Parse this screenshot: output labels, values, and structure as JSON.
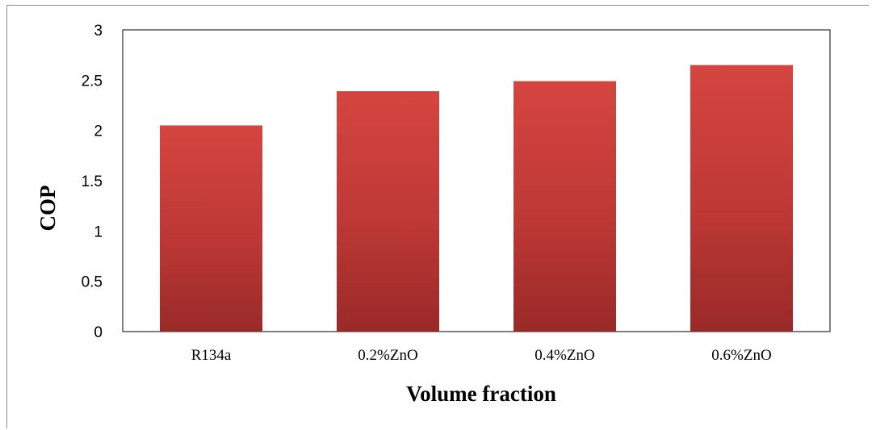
{
  "chart_data": {
    "type": "bar",
    "categories": [
      "R134a",
      "0.2%ZnO",
      "0.4%ZnO",
      "0.6%ZnO"
    ],
    "values": [
      2.05,
      2.39,
      2.49,
      2.65
    ],
    "title": "",
    "xlabel": "Volume fraction",
    "ylabel": "COP",
    "ylim": [
      0,
      3
    ],
    "yticks": [
      "0",
      "0.5",
      "1",
      "1.5",
      "2",
      "2.5",
      "3"
    ],
    "grid": false,
    "legend": "none",
    "bar_color_top": "#d54540",
    "bar_color_bottom": "#992a28"
  }
}
